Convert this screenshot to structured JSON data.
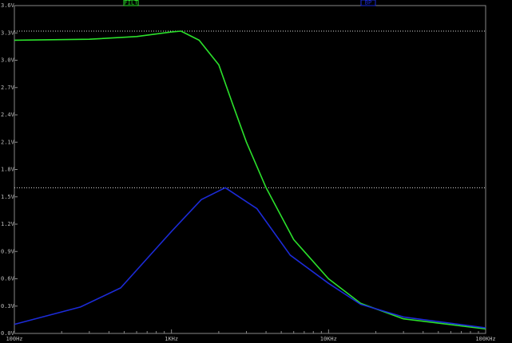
{
  "chart_data": {
    "type": "line",
    "log_x": true,
    "xlim": [
      100,
      100000
    ],
    "xticks": [
      {
        "value": 100,
        "label": "100Hz"
      },
      {
        "value": 1000,
        "label": "1KHz"
      },
      {
        "value": 10000,
        "label": "10KHz"
      },
      {
        "value": 100000,
        "label": "100KHz"
      }
    ],
    "ylim": [
      0,
      3.6
    ],
    "yticks": [
      {
        "value": 0,
        "label": "0.0V"
      },
      {
        "value": 0.3,
        "label": "0.3V"
      },
      {
        "value": 0.6,
        "label": "0.6V"
      },
      {
        "value": 0.9,
        "label": "0.9V"
      },
      {
        "value": 1.2,
        "label": "1.2V"
      },
      {
        "value": 1.5,
        "label": "1.5V"
      },
      {
        "value": 1.8,
        "label": "1.8V"
      },
      {
        "value": 2.1,
        "label": "2.1V"
      },
      {
        "value": 2.4,
        "label": "2.4V"
      },
      {
        "value": 2.7,
        "label": "2.7V"
      },
      {
        "value": 3.0,
        "label": "3.0V"
      },
      {
        "value": 3.3,
        "label": "3.3V"
      },
      {
        "value": 3.6,
        "label": "3.6V"
      }
    ],
    "hlines": [
      3.32,
      1.6
    ],
    "series": [
      {
        "name": "FILT",
        "color": "#2be02b",
        "x": [
          100,
          300,
          600,
          1000,
          1150,
          1500,
          2000,
          2450,
          3000,
          4000,
          6000,
          10000,
          16000,
          30000,
          100000
        ],
        "values": [
          3.22,
          3.23,
          3.26,
          3.31,
          3.32,
          3.22,
          2.95,
          2.52,
          2.1,
          1.6,
          1.03,
          0.6,
          0.33,
          0.16,
          0.05
        ]
      },
      {
        "name": "BP",
        "color": "#1c2bd8",
        "x": [
          100,
          263,
          475,
          1000,
          1550,
          2200,
          3500,
          5700,
          10000,
          16000,
          30000,
          100000
        ],
        "values": [
          0.1,
          0.29,
          0.5,
          1.12,
          1.47,
          1.6,
          1.37,
          0.86,
          0.55,
          0.32,
          0.18,
          0.06
        ]
      }
    ]
  }
}
